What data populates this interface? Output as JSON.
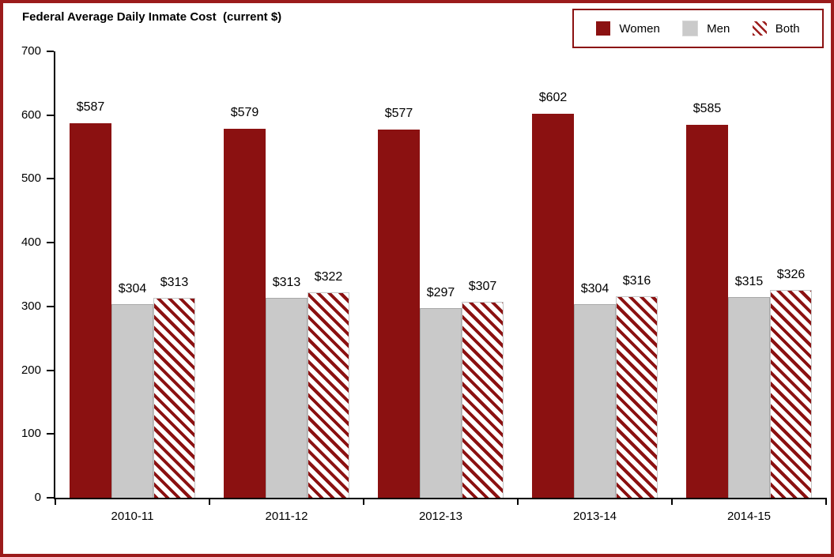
{
  "title": "Federal Average Daily Inmate Cost  (current $)",
  "colors": {
    "frame_border": "#9B1B1B",
    "legend_border": "#8B1111",
    "women_bar": "#8B1111",
    "men_bar": "#C9C9C9",
    "both_stripe": "#8B1111",
    "axis": "#000000"
  },
  "chart_data": {
    "type": "bar",
    "title": "Federal Average Daily Inmate Cost  (current $)",
    "categories": [
      "2010-11",
      "2011-12",
      "2012-13",
      "2013-14",
      "2014-15"
    ],
    "series": [
      {
        "name": "Women",
        "style": "women",
        "values": [
          587,
          579,
          577,
          602,
          585
        ]
      },
      {
        "name": "Men",
        "style": "men",
        "values": [
          304,
          313,
          297,
          304,
          315
        ]
      },
      {
        "name": "Both",
        "style": "both",
        "values": [
          313,
          322,
          307,
          316,
          326
        ]
      }
    ],
    "value_prefix": "$",
    "xlabel": "",
    "ylabel": "",
    "ylim": [
      0,
      700
    ],
    "ytick_step": 100,
    "grid": false,
    "legend_position": "top-right"
  }
}
